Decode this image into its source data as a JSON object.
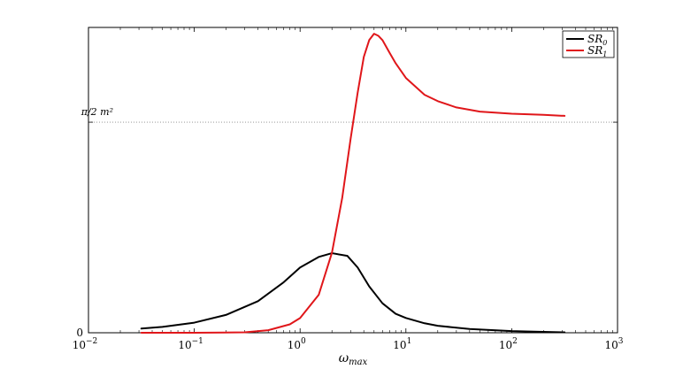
{
  "chart_data": {
    "type": "line",
    "title": "",
    "xlabel": "ω",
    "xlabel_sub": "max",
    "ylabel": "",
    "xscale": "log",
    "xlim": [
      0.01,
      1000
    ],
    "ylim": [
      0,
      1.45
    ],
    "grid": false,
    "legend_position": "top-right",
    "x_ticks": [
      {
        "value": 0.01,
        "base": "10",
        "exp": "−2"
      },
      {
        "value": 0.1,
        "base": "10",
        "exp": "−1"
      },
      {
        "value": 1,
        "base": "10",
        "exp": "0"
      },
      {
        "value": 10,
        "base": "10",
        "exp": "1"
      },
      {
        "value": 100,
        "base": "10",
        "exp": "2"
      },
      {
        "value": 1000,
        "base": "10",
        "exp": "3"
      }
    ],
    "y_ticks": [
      {
        "value": 0,
        "label": "0"
      },
      {
        "value": 1.0,
        "label": "π/2 m²",
        "special": true
      }
    ],
    "reference_line": {
      "value": 1.0,
      "style": "dotted"
    },
    "series": [
      {
        "name": "SR",
        "name_sub": "0",
        "color": "#000000",
        "x": [
          0.0316,
          0.05,
          0.1,
          0.2,
          0.4,
          0.7,
          1.0,
          1.5,
          2.0,
          2.8,
          3.5,
          4.5,
          6.0,
          8.0,
          10,
          15,
          20,
          40,
          100,
          200,
          316
        ],
        "y": [
          0.02,
          0.028,
          0.048,
          0.085,
          0.15,
          0.24,
          0.31,
          0.36,
          0.378,
          0.365,
          0.31,
          0.22,
          0.14,
          0.09,
          0.07,
          0.045,
          0.033,
          0.018,
          0.008,
          0.004,
          0.002
        ]
      },
      {
        "name": "SR",
        "name_sub": "1",
        "color": "#e0161a",
        "x": [
          0.0316,
          0.1,
          0.3,
          0.5,
          0.8,
          1.0,
          1.5,
          2.0,
          2.5,
          3.0,
          3.5,
          4.0,
          4.5,
          5.0,
          5.5,
          6.0,
          7.0,
          8.0,
          10,
          15,
          20,
          30,
          50,
          100,
          200,
          316
        ],
        "y": [
          0,
          0,
          0.002,
          0.012,
          0.04,
          0.07,
          0.18,
          0.38,
          0.64,
          0.92,
          1.14,
          1.31,
          1.39,
          1.42,
          1.41,
          1.39,
          1.33,
          1.28,
          1.21,
          1.13,
          1.1,
          1.07,
          1.05,
          1.04,
          1.035,
          1.03
        ]
      }
    ]
  }
}
